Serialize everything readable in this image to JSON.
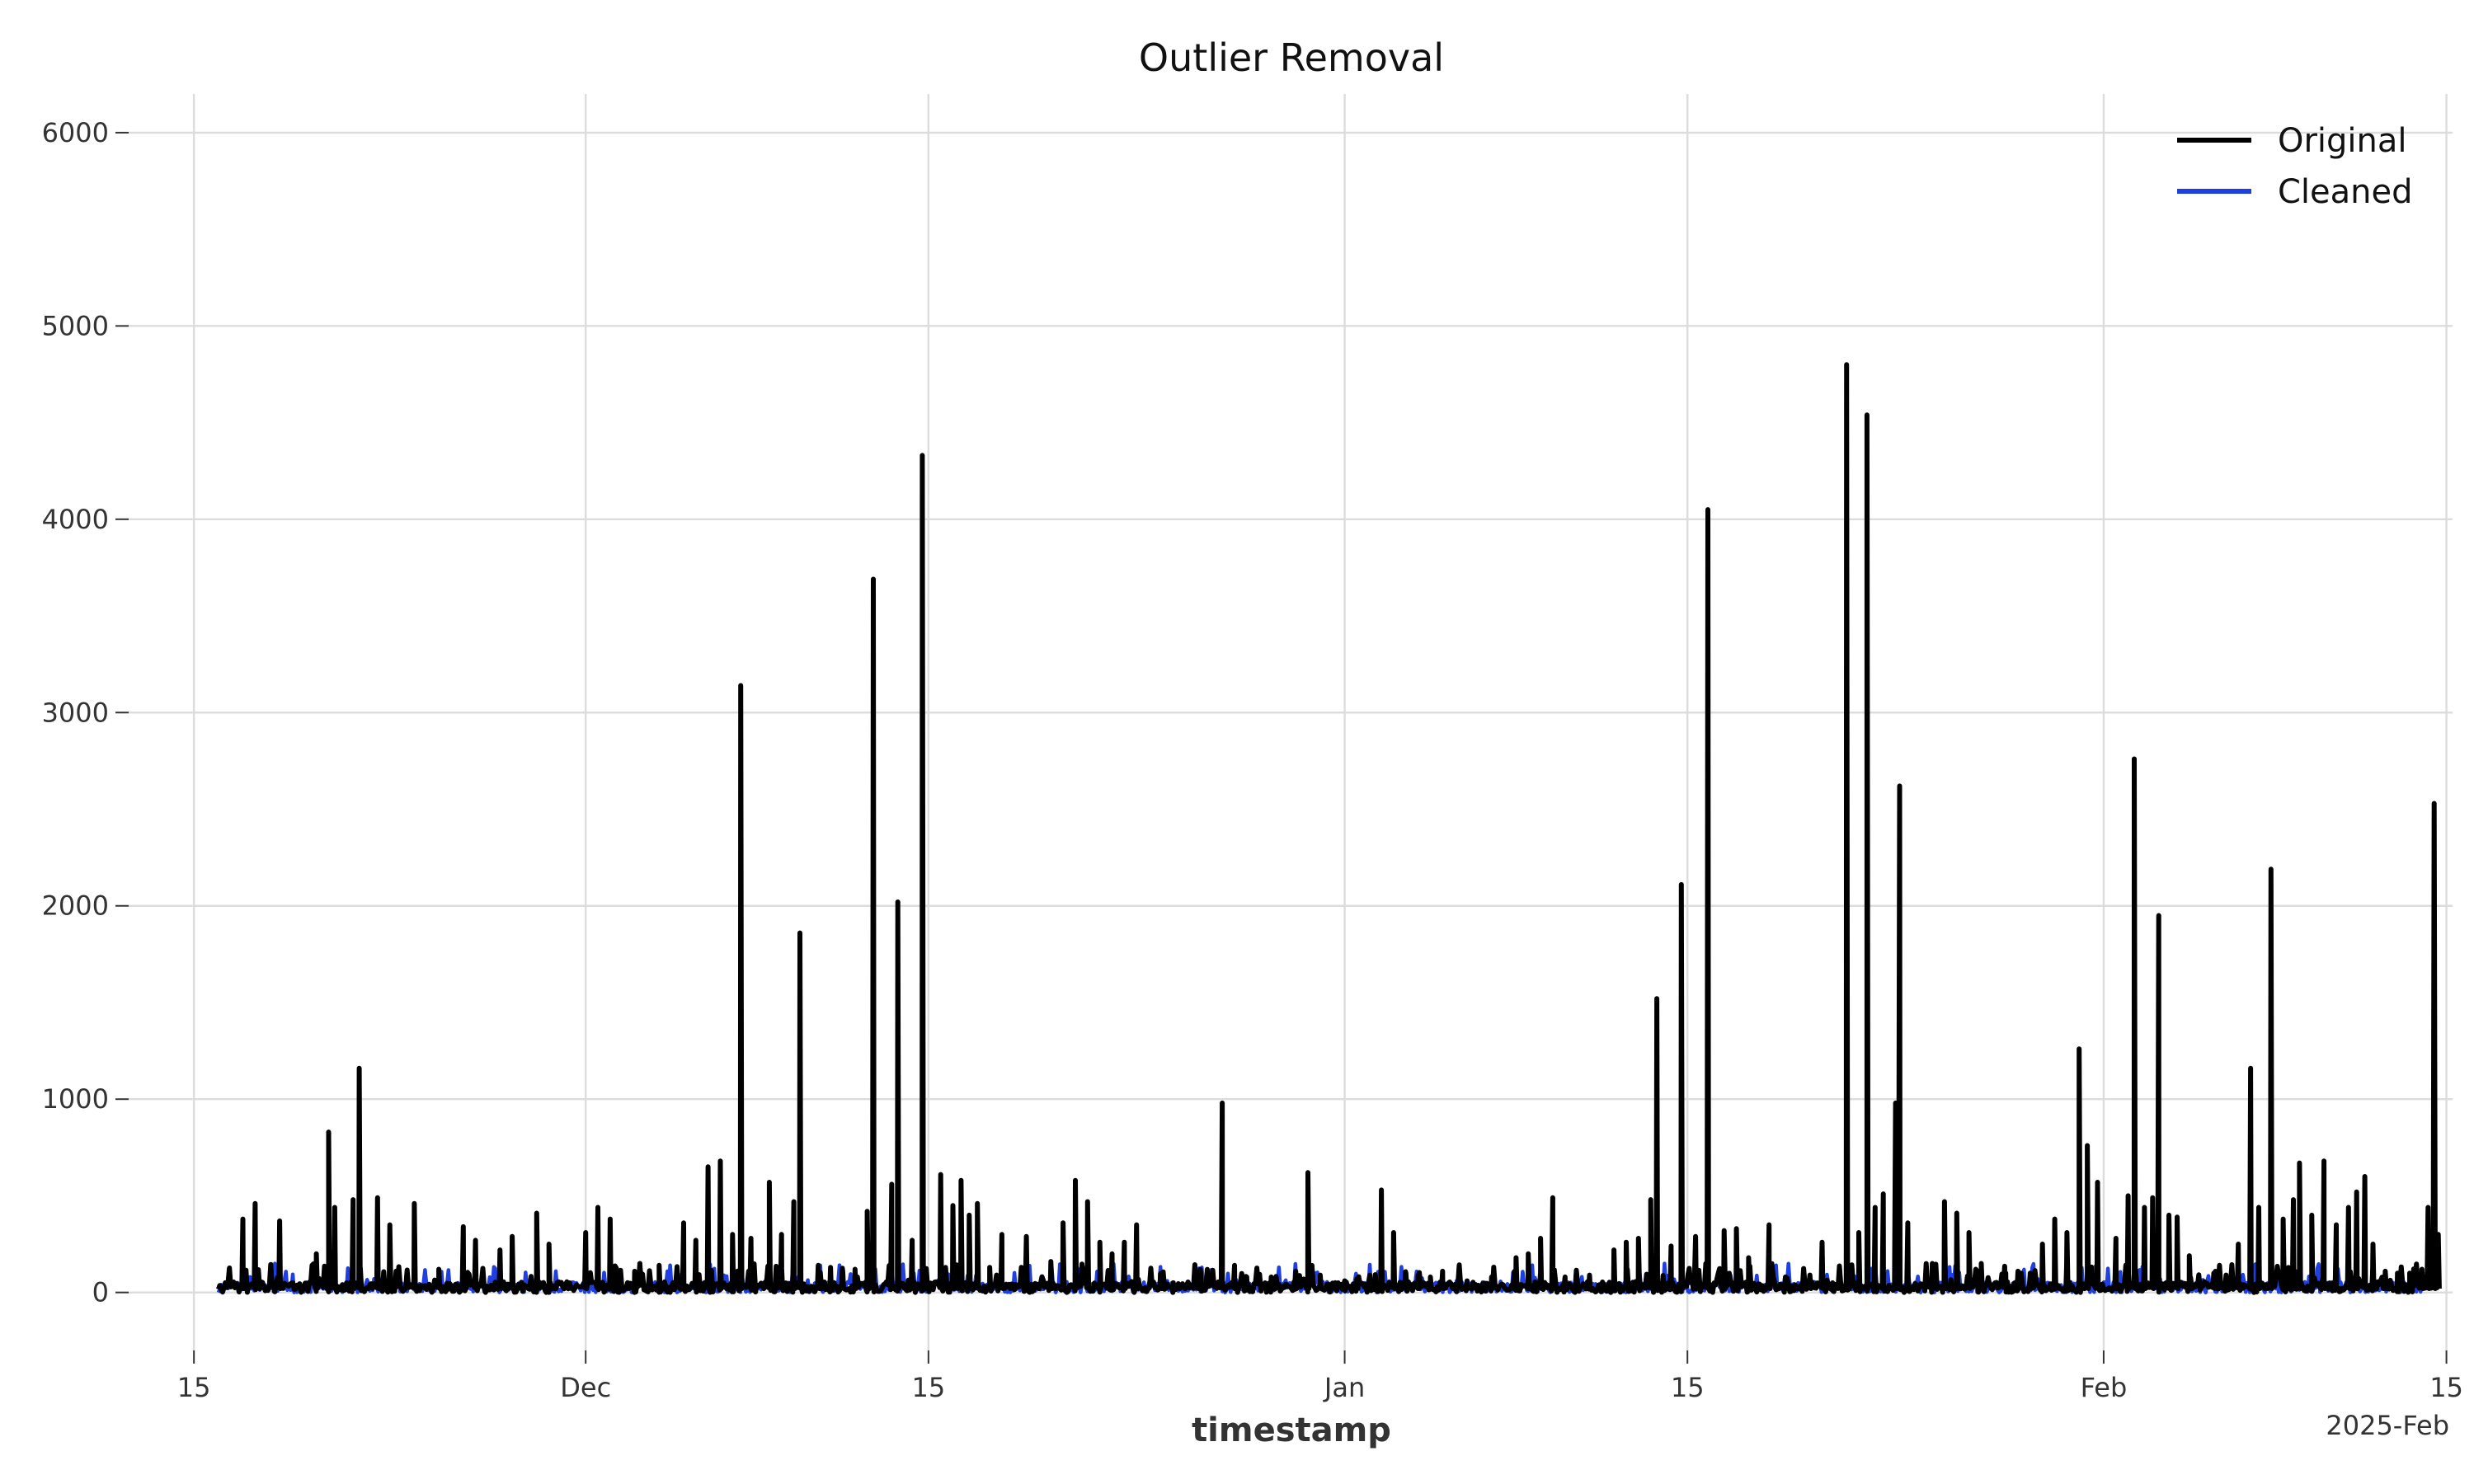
{
  "chart_data": {
    "type": "line",
    "title": "Outlier Removal",
    "xlabel": "timestamp",
    "ylabel": "",
    "ylim": [
      -300,
      6200
    ],
    "yticks": [
      0,
      1000,
      2000,
      3000,
      4000,
      5000,
      6000
    ],
    "xlim": [
      "2024-11-12T08:00",
      "2025-02-15T06:00"
    ],
    "xticks": [
      {
        "date": "2024-11-15",
        "label": "15"
      },
      {
        "date": "2024-12-01",
        "label": "Dec"
      },
      {
        "date": "2024-12-15",
        "label": "15"
      },
      {
        "date": "2025-01-01",
        "label": "Jan"
      },
      {
        "date": "2025-01-15",
        "label": "15"
      },
      {
        "date": "2025-02-01",
        "label": "Feb"
      },
      {
        "date": "2025-02-15",
        "label": "15"
      }
    ],
    "x_offset_label": "2025-Feb",
    "grid": true,
    "legend_position": "top-right",
    "series": [
      {
        "name": "Original",
        "color": "#000000",
        "range": [
          "2024-11-16",
          "2025-02-14"
        ],
        "peaks": [
          [
            "2024-11-17",
            380
          ],
          [
            "2024-11-17T12:00",
            460
          ],
          [
            "2024-11-18T12:00",
            370
          ],
          [
            "2024-11-20",
            200
          ],
          [
            "2024-11-20T12:00",
            830
          ],
          [
            "2024-11-20T18:00",
            440
          ],
          [
            "2024-11-21T12:00",
            480
          ],
          [
            "2024-11-21T18:00",
            1160
          ],
          [
            "2024-11-22T12:00",
            490
          ],
          [
            "2024-11-23",
            350
          ],
          [
            "2024-11-24",
            460
          ],
          [
            "2024-11-25",
            120
          ],
          [
            "2024-11-26",
            340
          ],
          [
            "2024-11-26T12:00",
            270
          ],
          [
            "2024-11-27T12:00",
            220
          ],
          [
            "2024-11-28",
            290
          ],
          [
            "2024-11-29",
            410
          ],
          [
            "2024-11-29T12:00",
            250
          ],
          [
            "2024-12-01",
            310
          ],
          [
            "2024-12-01T12:00",
            440
          ],
          [
            "2024-12-02",
            380
          ],
          [
            "2024-12-03",
            110
          ],
          [
            "2024-12-04",
            140
          ],
          [
            "2024-12-05",
            360
          ],
          [
            "2024-12-05T12:00",
            270
          ],
          [
            "2024-12-06",
            650
          ],
          [
            "2024-12-06T12:00",
            680
          ],
          [
            "2024-12-07",
            300
          ],
          [
            "2024-12-07T08:00",
            3140
          ],
          [
            "2024-12-07T18:00",
            280
          ],
          [
            "2024-12-08T12:00",
            570
          ],
          [
            "2024-12-09",
            300
          ],
          [
            "2024-12-09T12:00",
            470
          ],
          [
            "2024-12-09T18:00",
            1860
          ],
          [
            "2024-12-10T12:00",
            140
          ],
          [
            "2024-12-11",
            130
          ],
          [
            "2024-12-11T12:00",
            110
          ],
          [
            "2024-12-12",
            120
          ],
          [
            "2024-12-12T12:00",
            420
          ],
          [
            "2024-12-12T18:00",
            3690
          ],
          [
            "2024-12-13T12:00",
            560
          ],
          [
            "2024-12-13T18:00",
            2020
          ],
          [
            "2024-12-14T08:00",
            270
          ],
          [
            "2024-12-14T18:00",
            4330
          ],
          [
            "2024-12-15T12:00",
            610
          ],
          [
            "2024-12-16",
            450
          ],
          [
            "2024-12-16T08:00",
            580
          ],
          [
            "2024-12-16T16:00",
            400
          ],
          [
            "2024-12-17",
            460
          ],
          [
            "2024-12-17T12:00",
            130
          ],
          [
            "2024-12-18",
            300
          ],
          [
            "2024-12-19",
            290
          ],
          [
            "2024-12-20",
            160
          ],
          [
            "2024-12-20T12:00",
            360
          ],
          [
            "2024-12-21",
            580
          ],
          [
            "2024-12-21T12:00",
            470
          ],
          [
            "2024-12-22",
            260
          ],
          [
            "2024-12-22T12:00",
            200
          ],
          [
            "2024-12-23",
            260
          ],
          [
            "2024-12-23T12:00",
            350
          ],
          [
            "2024-12-24T12:00",
            90
          ],
          [
            "2024-12-25",
            50
          ],
          [
            "2024-12-26",
            40
          ],
          [
            "2024-12-27",
            980
          ],
          [
            "2024-12-27T12:00",
            140
          ],
          [
            "2024-12-28",
            80
          ],
          [
            "2024-12-29",
            80
          ],
          [
            "2024-12-30",
            110
          ],
          [
            "2024-12-30T12:00",
            620
          ],
          [
            "2024-12-31",
            90
          ],
          [
            "2025-01-01",
            60
          ],
          [
            "2025-01-01T12:00",
            70
          ],
          [
            "2025-01-02",
            70
          ],
          [
            "2025-01-02T12:00",
            530
          ],
          [
            "2025-01-03",
            310
          ],
          [
            "2025-01-03T12:00",
            100
          ],
          [
            "2025-01-04",
            90
          ],
          [
            "2025-01-04T12:00",
            80
          ],
          [
            "2025-01-05",
            110
          ],
          [
            "2025-01-06",
            60
          ],
          [
            "2025-01-07",
            80
          ],
          [
            "2025-01-08",
            180
          ],
          [
            "2025-01-08T12:00",
            200
          ],
          [
            "2025-01-09",
            280
          ],
          [
            "2025-01-09T12:00",
            490
          ],
          [
            "2025-01-10",
            80
          ],
          [
            "2025-01-11",
            90
          ],
          [
            "2025-01-12",
            220
          ],
          [
            "2025-01-12T12:00",
            260
          ],
          [
            "2025-01-13",
            280
          ],
          [
            "2025-01-13T12:00",
            480
          ],
          [
            "2025-01-13T18:00",
            1520
          ],
          [
            "2025-01-14T08:00",
            240
          ],
          [
            "2025-01-14T18:00",
            2110
          ],
          [
            "2025-01-15T08:00",
            290
          ],
          [
            "2025-01-15T20:00",
            4050
          ],
          [
            "2025-01-16T12:00",
            320
          ],
          [
            "2025-01-17",
            330
          ],
          [
            "2025-01-17T12:00",
            180
          ],
          [
            "2025-01-18T08:00",
            350
          ],
          [
            "2025-01-19",
            80
          ],
          [
            "2025-01-20",
            90
          ],
          [
            "2025-01-20T12:00",
            260
          ],
          [
            "2025-01-21T12:00",
            4800
          ],
          [
            "2025-01-22",
            310
          ],
          [
            "2025-01-22T08:00",
            4540
          ],
          [
            "2025-01-22T16:00",
            440
          ],
          [
            "2025-01-23",
            510
          ],
          [
            "2025-01-23T12:00",
            980
          ],
          [
            "2025-01-23T16:00",
            2620
          ],
          [
            "2025-01-24",
            360
          ],
          [
            "2025-01-25",
            150
          ],
          [
            "2025-01-25T12:00",
            470
          ],
          [
            "2025-01-26",
            410
          ],
          [
            "2025-01-26T12:00",
            310
          ],
          [
            "2025-01-27",
            150
          ],
          [
            "2025-01-28",
            100
          ],
          [
            "2025-01-28T12:00",
            110
          ],
          [
            "2025-01-29",
            100
          ],
          [
            "2025-01-29T12:00",
            250
          ],
          [
            "2025-01-30",
            380
          ],
          [
            "2025-01-30T12:00",
            310
          ],
          [
            "2025-01-31",
            1260
          ],
          [
            "2025-01-31T08:00",
            760
          ],
          [
            "2025-01-31T18:00",
            570
          ],
          [
            "2025-02-01T12:00",
            280
          ],
          [
            "2025-02-02",
            500
          ],
          [
            "2025-02-02T06:00",
            2760
          ],
          [
            "2025-02-02T16:00",
            440
          ],
          [
            "2025-02-03",
            490
          ],
          [
            "2025-02-03T06:00",
            1950
          ],
          [
            "2025-02-03T16:00",
            400
          ],
          [
            "2025-02-04",
            390
          ],
          [
            "2025-02-04T12:00",
            190
          ],
          [
            "2025-02-05T12:00",
            100
          ],
          [
            "2025-02-06",
            90
          ],
          [
            "2025-02-06T12:00",
            250
          ],
          [
            "2025-02-07",
            1160
          ],
          [
            "2025-02-07T08:00",
            440
          ],
          [
            "2025-02-07T20:00",
            2190
          ],
          [
            "2025-02-08T08:00",
            380
          ],
          [
            "2025-02-08T18:00",
            480
          ],
          [
            "2025-02-09",
            670
          ],
          [
            "2025-02-09T12:00",
            400
          ],
          [
            "2025-02-10",
            680
          ],
          [
            "2025-02-10T12:00",
            350
          ],
          [
            "2025-02-11",
            440
          ],
          [
            "2025-02-11T08:00",
            520
          ],
          [
            "2025-02-11T16:00",
            600
          ],
          [
            "2025-02-12",
            250
          ],
          [
            "2025-02-12T12:00",
            110
          ],
          [
            "2025-02-13",
            100
          ],
          [
            "2025-02-13T12:00",
            100
          ],
          [
            "2025-02-14",
            120
          ],
          [
            "2025-02-14T06:00",
            440
          ],
          [
            "2025-02-14T12:00",
            2530
          ],
          [
            "2025-02-14T16:00",
            300
          ]
        ]
      },
      {
        "name": "Cleaned",
        "color": "#1f3fe0",
        "range": [
          "2024-11-16",
          "2025-02-14"
        ],
        "peaks": []
      }
    ]
  }
}
